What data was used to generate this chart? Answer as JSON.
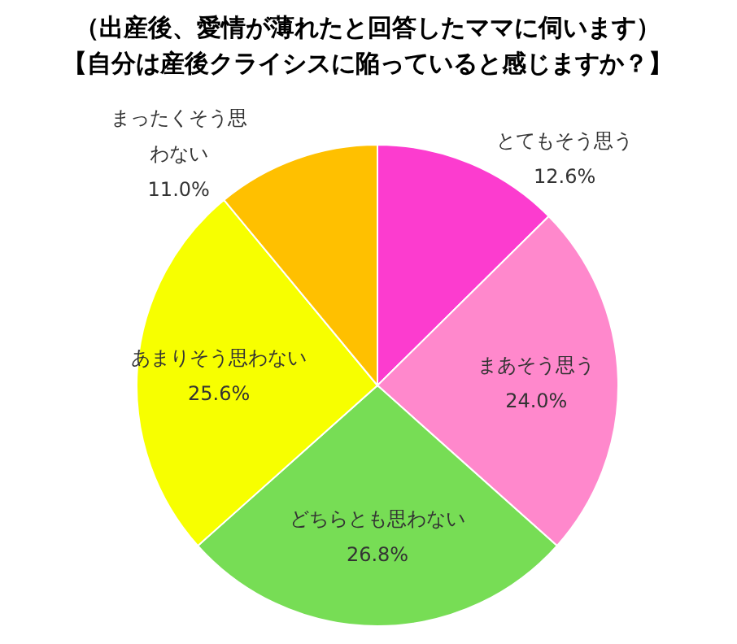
{
  "chart_data": {
    "type": "pie",
    "title": "（出産後、愛情が薄れたと回答したママに伺います）",
    "subtitle": "【自分は産後クライシスに陥っていると感じますか？】",
    "categories": [
      "とてもそう思う",
      "まあそう思う",
      "どちらとも思わない",
      "あまりそう思わない",
      "まったくそう思わない"
    ],
    "values": [
      12.6,
      24.0,
      26.8,
      25.6,
      11.0
    ],
    "value_labels": [
      "12.6%",
      "24.0%",
      "26.8%",
      "25.6%",
      "11.0%"
    ],
    "colors": [
      "#fc3ccf",
      "#ff88cc",
      "#77dd55",
      "#f7ff00",
      "#ffc000"
    ]
  }
}
